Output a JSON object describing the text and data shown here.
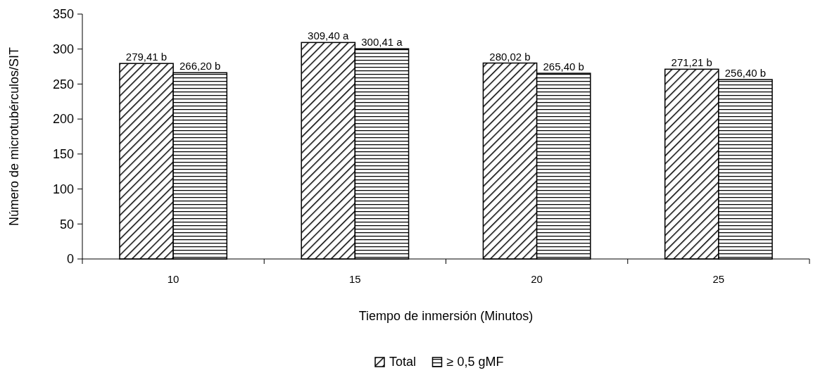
{
  "chart_data": {
    "type": "bar",
    "xlabel": "Tiempo de inmersión (Minutos)",
    "ylabel": "Número de microtubérculos/SIT",
    "categories": [
      "10",
      "15",
      "20",
      "25"
    ],
    "series": [
      {
        "name": "Total",
        "color": "#000000",
        "values": [
          279.41,
          309.4,
          280.02,
          271.21
        ],
        "value_labels": [
          "279,41 b",
          "309,40 a",
          "280,02 b",
          "271,21 b"
        ]
      },
      {
        "name": "≥ 0,5 gMF",
        "color": "#000000",
        "values": [
          266.2,
          300.41,
          265.4,
          256.4
        ],
        "value_labels": [
          "266,20 b",
          "300,41 a",
          "265,40 b",
          "256,40 b"
        ]
      }
    ],
    "ylim": [
      0,
      350
    ],
    "yticks": [
      0,
      50,
      100,
      150,
      200,
      250,
      300,
      350
    ],
    "grid": false,
    "legend": "bottom"
  }
}
